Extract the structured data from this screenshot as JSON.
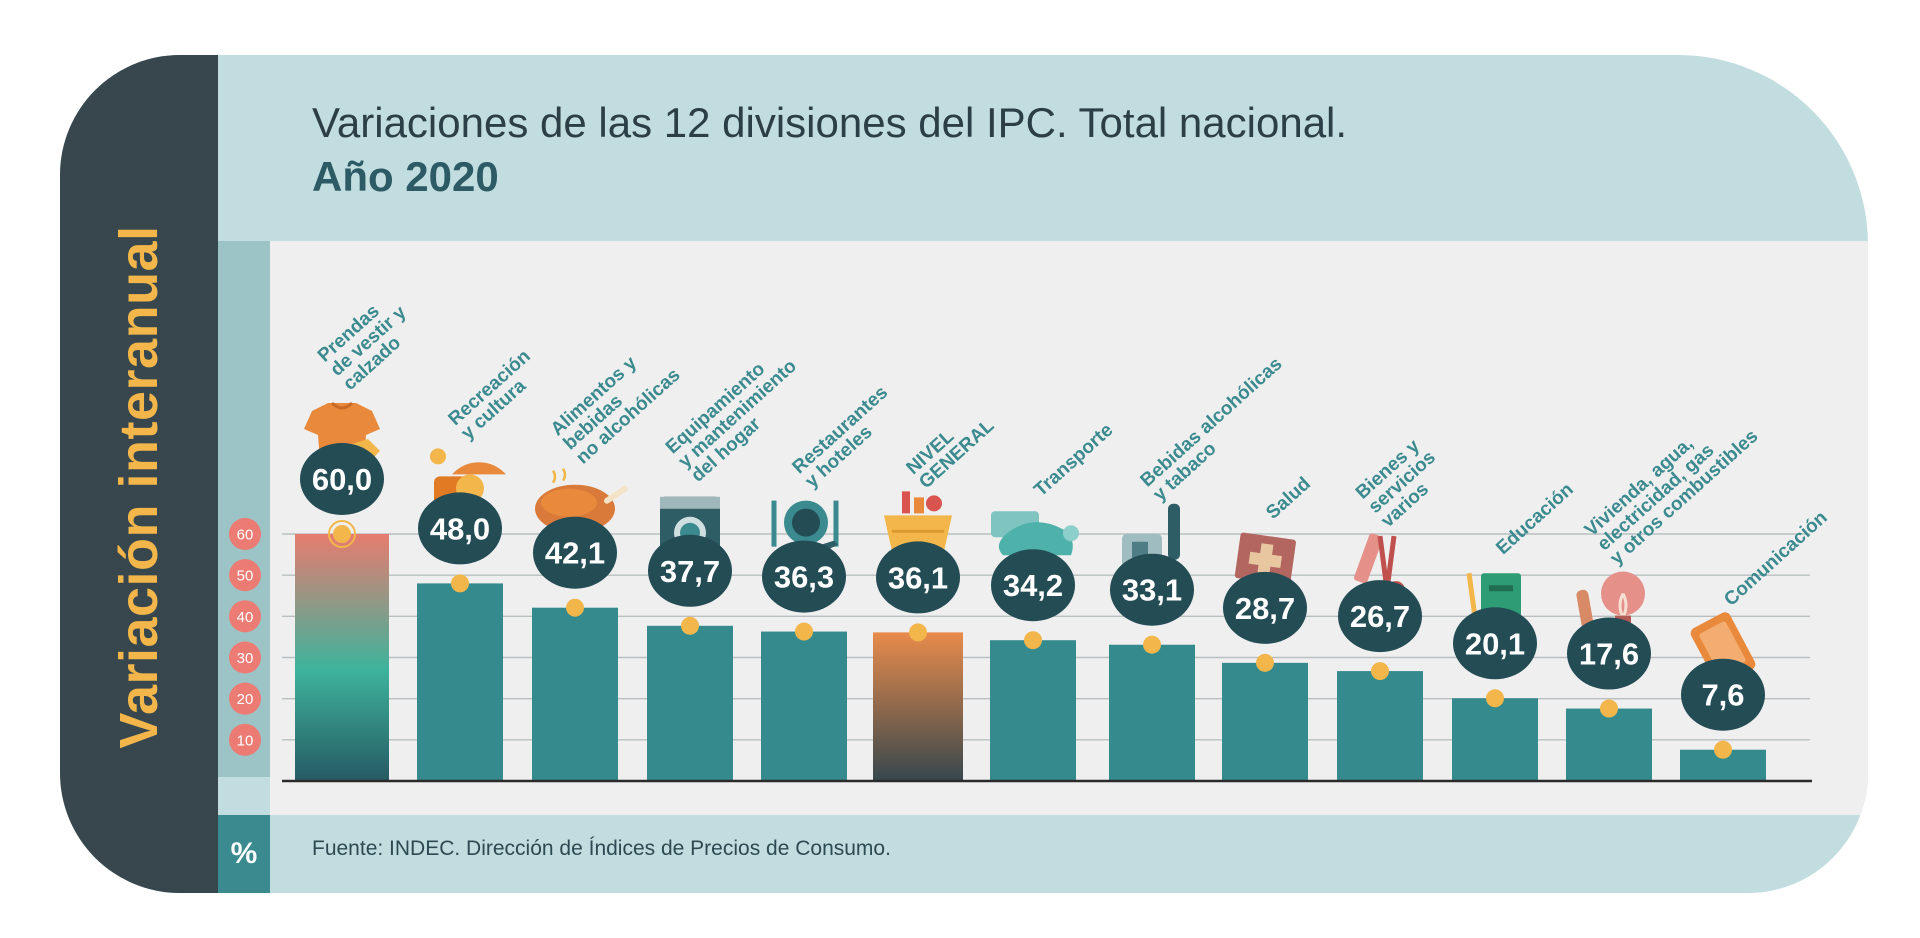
{
  "header": {
    "title_line1": "Variaciones de las 12 divisiones del IPC. Total nacional.",
    "title_line2": "Año 2020"
  },
  "sidebar": {
    "label": "Variación interanual"
  },
  "footer": {
    "unit_symbol": "%",
    "source": "Fuente: INDEC. Dirección de Índices de Precios de Consumo."
  },
  "colors": {
    "bar": "#358a8e",
    "highlight_gradient_top": "#e77c6f",
    "highlight_gradient_mid": "#3db39c",
    "highlight_gradient_bottom": "#265a63",
    "general_gradient_top": "#e88b4b",
    "general_gradient_bottom": "#37474d",
    "bubble": "#234c55",
    "dot": "#f2b64b",
    "tick_bubble": "#ec7b74",
    "general_value": "#f2b64b"
  },
  "chart_data": {
    "type": "bar",
    "title": "Variaciones de las 12 divisiones del IPC. Total nacional. Año 2020",
    "ylabel": "Variación interanual",
    "unit": "%",
    "ylim": [
      0,
      60
    ],
    "yticks": [
      10,
      20,
      30,
      40,
      50,
      60
    ],
    "grid": true,
    "categories": [
      [
        "Prendas",
        "de vestir y",
        "calzado"
      ],
      [
        "Recreación",
        "y cultura"
      ],
      [
        "Alimentos y",
        "bebidas",
        "no alcohólicas"
      ],
      [
        "Equipamiento",
        "y mantenimiento",
        "del hogar"
      ],
      [
        "Restaurantes",
        "y hoteles"
      ],
      [
        "NIVEL",
        "GENERAL"
      ],
      [
        "Transporte"
      ],
      [
        "Bebidas alcohólicas",
        "y tabaco"
      ],
      [
        "Salud"
      ],
      [
        "Bienes y",
        "servicios",
        "varios"
      ],
      [
        "Educación"
      ],
      [
        "Vivienda, agua,",
        "electricidad, gas",
        "y otros combustibles"
      ],
      [
        "Comunicación"
      ]
    ],
    "values": [
      60.0,
      48.0,
      42.1,
      37.7,
      36.3,
      36.1,
      34.2,
      33.1,
      28.7,
      26.7,
      20.1,
      17.6,
      7.6
    ],
    "labels": [
      "60,0",
      "48,0",
      "42,1",
      "37,7",
      "36,3",
      "36,1",
      "34,2",
      "33,1",
      "28,7",
      "26,7",
      "20,1",
      "17,6",
      "7,6"
    ],
    "icons": [
      "shirt-icon",
      "beach-ball-icon",
      "roast-chicken-icon",
      "washing-machine-icon",
      "cutlery-plane-icon",
      "shopping-basket-icon",
      "bus-card-icon",
      "bottle-icon",
      "first-aid-icon",
      "comb-scissors-icon",
      "book-icon",
      "bulb-wrench-icon",
      "phone-icon"
    ]
  }
}
